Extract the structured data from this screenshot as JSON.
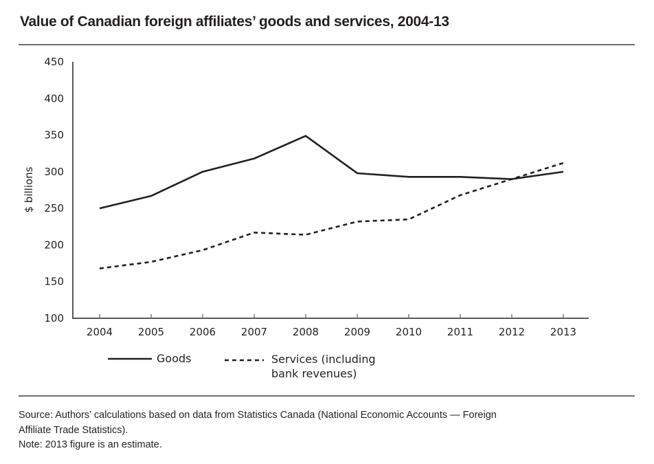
{
  "chart_data": {
    "type": "line",
    "title": "Value of Canadian foreign affiliates’ goods and services, 2004-13",
    "xlabel": "",
    "ylabel": "$ billions",
    "x": [
      "2004",
      "2005",
      "2006",
      "2007",
      "2008",
      "2009",
      "2010",
      "2011",
      "2012",
      "2013"
    ],
    "ylim": [
      100,
      450
    ],
    "yticks": [
      "100",
      "150",
      "200",
      "250",
      "300",
      "350",
      "400",
      "450"
    ],
    "grid": false,
    "legend_position": "bottom",
    "series": [
      {
        "name": "Goods",
        "style": "solid",
        "values": [
          250,
          267,
          300,
          318,
          349,
          298,
          293,
          293,
          290,
          300
        ]
      },
      {
        "name": "Services (including bank revenues)",
        "style": "dashed",
        "legend_lines": [
          "Services (including",
          "bank revenues)"
        ],
        "values": [
          168,
          177,
          193,
          217,
          214,
          232,
          235,
          268,
          290,
          312
        ]
      }
    ],
    "colors": {
      "line": "#231f20",
      "axis": "#58595b",
      "rule": "#6d6e71"
    }
  },
  "footer": {
    "source_line1": "Source: Authors’ calculations based on data from Statistics Canada (National Economic Accounts — Foreign",
    "source_line2": "Affiliate Trade Statistics).",
    "note": "Note: 2013 figure is an estimate."
  }
}
